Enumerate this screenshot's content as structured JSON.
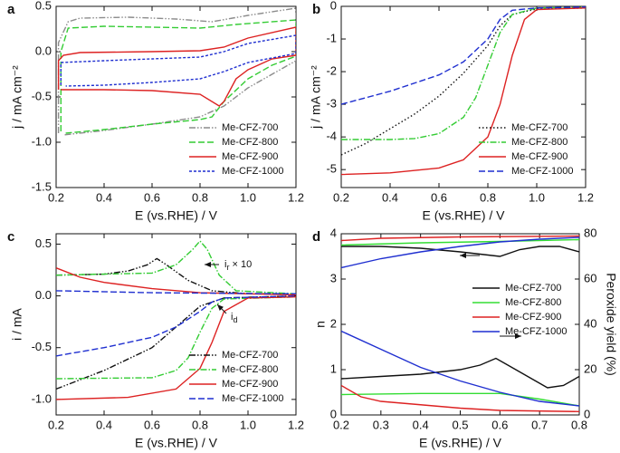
{
  "chart_data": [
    {
      "type": "line",
      "label": "a",
      "x_label": "E (vs.RHE) / V",
      "y_label": "j / mA cm⁻²",
      "xlim": [
        0.2,
        1.2
      ],
      "xticks": [
        0.2,
        0.4,
        0.6,
        0.8,
        {
          "value": 1.0,
          "label": "1.0"
        },
        1.2
      ],
      "ylim": [
        -1.5,
        0.5
      ],
      "yticks": [
        -1.5,
        {
          "value": -1.0,
          "label": "-1.0"
        },
        -0.5,
        {
          "value": 0,
          "label": "0.0"
        },
        0.5
      ],
      "legend": "lower right",
      "series": [
        {
          "name": "Me-CFZ-700",
          "color": "#8c8c8c",
          "linestyle": "dashdotdot",
          "x": [
            0.21,
            0.21,
            0.25,
            0.3,
            0.5,
            0.7,
            0.85,
            1.0,
            1.2,
            1.2,
            1.1,
            1.0,
            0.9,
            0.8,
            0.6,
            0.4,
            0.23
          ],
          "values": [
            -0.9,
            0.1,
            0.33,
            0.37,
            0.38,
            0.36,
            0.33,
            0.4,
            0.48,
            -0.1,
            -0.25,
            -0.4,
            -0.6,
            -0.72,
            -0.8,
            -0.87,
            -0.92
          ]
        },
        {
          "name": "Me-CFZ-800",
          "color": "#33cc33",
          "linestyle": "dashed",
          "x": [
            0.22,
            0.22,
            0.25,
            0.4,
            0.6,
            0.8,
            0.95,
            1.2,
            1.2,
            1.1,
            1.0,
            0.9,
            0.85,
            0.8,
            0.6,
            0.4,
            0.24
          ],
          "values": [
            -0.88,
            0.0,
            0.26,
            0.28,
            0.27,
            0.26,
            0.3,
            0.35,
            -0.05,
            -0.15,
            -0.3,
            -0.55,
            -0.72,
            -0.75,
            -0.8,
            -0.86,
            -0.9
          ]
        },
        {
          "name": "Me-CFZ-900",
          "color": "#dd2222",
          "linestyle": "solid",
          "x": [
            0.21,
            0.21,
            0.23,
            0.3,
            0.6,
            0.8,
            0.9,
            1.0,
            1.2,
            1.2,
            1.1,
            1.0,
            0.95,
            0.9,
            0.88,
            0.8,
            0.6,
            0.4,
            0.22
          ],
          "values": [
            -0.42,
            -0.1,
            -0.04,
            -0.01,
            0.0,
            0.01,
            0.05,
            0.15,
            0.27,
            -0.04,
            -0.08,
            -0.2,
            -0.3,
            -0.55,
            -0.6,
            -0.47,
            -0.43,
            -0.42,
            -0.42
          ]
        },
        {
          "name": "Me-CFZ-1000",
          "color": "#1f2fd0",
          "linestyle": "shortdash",
          "x": [
            0.22,
            0.22,
            0.4,
            0.6,
            0.8,
            0.9,
            1.0,
            1.2,
            1.2,
            1.0,
            0.9,
            0.8,
            0.6,
            0.4,
            0.24
          ],
          "values": [
            -0.37,
            -0.12,
            -0.1,
            -0.08,
            -0.06,
            0.0,
            0.09,
            0.18,
            -0.02,
            -0.12,
            -0.22,
            -0.3,
            -0.34,
            -0.37,
            -0.38
          ]
        }
      ]
    },
    {
      "type": "line",
      "label": "b",
      "x_label": "E (vs.RHE) / V",
      "y_label": "j / mA cm⁻²",
      "xlim": [
        0.2,
        1.2
      ],
      "xticks": [
        0.2,
        0.4,
        0.6,
        0.8,
        {
          "value": 1.0,
          "label": "1.0"
        },
        1.2
      ],
      "ylim": [
        -5.55,
        0
      ],
      "yticks": [
        -5,
        -4,
        -3,
        -2,
        -1,
        0
      ],
      "legend": "lower right",
      "series": [
        {
          "name": "Me-CFZ-700",
          "color": "#111111",
          "linestyle": "dotted",
          "x": [
            0.2,
            0.3,
            0.4,
            0.5,
            0.6,
            0.7,
            0.8,
            0.85,
            0.9,
            1.0,
            1.2
          ],
          "values": [
            -4.55,
            -4.2,
            -3.75,
            -3.3,
            -2.75,
            -2.05,
            -1.2,
            -0.6,
            -0.25,
            -0.08,
            -0.05
          ]
        },
        {
          "name": "Me-CFZ-800",
          "color": "#33cc33",
          "linestyle": "dashdot",
          "x": [
            0.2,
            0.4,
            0.5,
            0.6,
            0.7,
            0.75,
            0.8,
            0.85,
            0.9,
            1.0,
            1.2
          ],
          "values": [
            -4.08,
            -4.08,
            -4.05,
            -3.9,
            -3.4,
            -2.8,
            -1.8,
            -0.8,
            -0.25,
            -0.05,
            -0.03
          ]
        },
        {
          "name": "Me-CFZ-900",
          "color": "#dd2222",
          "linestyle": "solid",
          "x": [
            0.2,
            0.4,
            0.6,
            0.7,
            0.8,
            0.85,
            0.9,
            0.95,
            1.0,
            1.2
          ],
          "values": [
            -5.15,
            -5.1,
            -4.95,
            -4.7,
            -4.0,
            -3.0,
            -1.5,
            -0.4,
            -0.1,
            -0.05
          ]
        },
        {
          "name": "Me-CFZ-1000",
          "color": "#1f2fd0",
          "linestyle": "dashed",
          "x": [
            0.2,
            0.4,
            0.6,
            0.7,
            0.8,
            0.85,
            0.9,
            1.0,
            1.2
          ],
          "values": [
            -3.0,
            -2.6,
            -2.1,
            -1.7,
            -1.0,
            -0.4,
            -0.12,
            -0.05,
            -0.02
          ]
        }
      ]
    },
    {
      "type": "line",
      "label": "c",
      "x_label": "E (vs.RHE) / V",
      "y_label": "i / mA",
      "xlim": [
        0.2,
        1.2
      ],
      "xticks": [
        0.2,
        0.4,
        0.6,
        0.8,
        {
          "value": 1.0,
          "label": "1.0"
        },
        1.2
      ],
      "ylim": [
        -1.15,
        0.6
      ],
      "yticks": [
        {
          "value": -1.0,
          "label": "-1.0"
        },
        -0.5,
        {
          "value": 0,
          "label": "0.0"
        },
        0.5
      ],
      "legend": "lower right",
      "annotations": [
        {
          "text": "i",
          "sub": "r",
          "tail": " × 10"
        },
        {
          "text": "i",
          "sub": "d"
        }
      ],
      "series": [
        {
          "name": "Me-CFZ-700",
          "color": "#111111",
          "linestyle": "dashdotdot",
          "x": [
            0.2,
            0.4,
            0.5,
            0.58,
            0.62,
            0.66,
            0.75,
            0.85,
            1.0,
            1.2,
            null,
            0.2,
            0.4,
            0.6,
            0.7,
            0.8,
            0.9,
            1.2
          ],
          "values": [
            0.2,
            0.21,
            0.24,
            0.3,
            0.36,
            0.3,
            0.15,
            0.05,
            0.02,
            0.02,
            null,
            -0.9,
            -0.72,
            -0.5,
            -0.3,
            -0.1,
            -0.02,
            0.0
          ]
        },
        {
          "name": "Me-CFZ-800",
          "color": "#33cc33",
          "linestyle": "dashdot",
          "x": [
            0.2,
            0.6,
            0.7,
            0.77,
            0.8,
            0.83,
            0.88,
            0.95,
            1.2,
            null,
            0.2,
            0.6,
            0.7,
            0.75,
            0.8,
            0.85,
            0.9,
            1.2
          ],
          "values": [
            0.2,
            0.22,
            0.3,
            0.45,
            0.53,
            0.45,
            0.2,
            0.05,
            0.02,
            null,
            -0.8,
            -0.79,
            -0.72,
            -0.6,
            -0.35,
            -0.12,
            -0.03,
            -0.01
          ]
        },
        {
          "name": "Me-CFZ-900",
          "color": "#dd2222",
          "linestyle": "solid",
          "x": [
            0.2,
            0.3,
            0.4,
            0.6,
            0.8,
            1.0,
            1.2,
            null,
            0.2,
            0.5,
            0.7,
            0.8,
            0.85,
            0.9,
            1.0,
            1.2
          ],
          "values": [
            0.27,
            0.18,
            0.13,
            0.07,
            0.03,
            0.02,
            0.01,
            null,
            -1.0,
            -0.98,
            -0.9,
            -0.7,
            -0.45,
            -0.15,
            -0.02,
            -0.01
          ]
        },
        {
          "name": "Me-CFZ-1000",
          "color": "#1f2fd0",
          "linestyle": "dashed",
          "x": [
            0.2,
            0.6,
            1.2,
            null,
            0.2,
            0.4,
            0.6,
            0.7,
            0.8,
            0.85,
            0.9,
            1.2
          ],
          "values": [
            0.05,
            0.03,
            0.02,
            null,
            -0.58,
            -0.5,
            -0.4,
            -0.3,
            -0.15,
            -0.06,
            -0.02,
            0.0
          ]
        }
      ]
    },
    {
      "type": "line",
      "label": "d",
      "x_label": "E (vs.RHE) / V",
      "y_label": "n",
      "y2_label": "Peroxide yield (%)",
      "xlim": [
        0.2,
        0.8
      ],
      "xticks": [
        0.2,
        0.3,
        0.4,
        0.5,
        0.6,
        0.7,
        0.8
      ],
      "ylim": [
        0,
        4
      ],
      "yticks": [
        0,
        1,
        2,
        3,
        4
      ],
      "y2lim": [
        0,
        80
      ],
      "y2ticks": [
        0,
        20,
        40,
        60,
        80
      ],
      "legend": "center right",
      "series": [
        {
          "name": "Me-CFZ-700",
          "color": "#111111",
          "linestyle": "solid",
          "x": [
            0.2,
            0.3,
            0.4,
            0.5,
            0.55,
            0.6,
            0.65,
            0.7,
            0.75,
            0.8
          ],
          "values": [
            3.72,
            3.72,
            3.68,
            3.6,
            3.55,
            3.5,
            3.65,
            3.72,
            3.72,
            3.6
          ]
        },
        {
          "name": "Me-CFZ-800",
          "color": "#33dd33",
          "linestyle": "solid",
          "x": [
            0.2,
            0.4,
            0.6,
            0.8
          ],
          "values": [
            3.75,
            3.8,
            3.83,
            3.87
          ]
        },
        {
          "name": "Me-CFZ-900",
          "color": "#dd2222",
          "linestyle": "solid",
          "x": [
            0.2,
            0.3,
            0.5,
            0.8
          ],
          "values": [
            3.85,
            3.9,
            3.93,
            3.95
          ]
        },
        {
          "name": "Me-CFZ-1000",
          "color": "#1f2fd0",
          "linestyle": "solid",
          "x": [
            0.2,
            0.3,
            0.4,
            0.5,
            0.6,
            0.7,
            0.8
          ],
          "values": [
            3.25,
            3.45,
            3.6,
            3.72,
            3.82,
            3.88,
            3.92
          ]
        },
        {
          "color": "#111111",
          "linestyle": "solid",
          "axis": "y2",
          "x": [
            0.2,
            0.3,
            0.4,
            0.5,
            0.55,
            0.59,
            0.62,
            0.67,
            0.72,
            0.76,
            0.8
          ],
          "values": [
            16,
            17,
            18,
            20,
            22,
            25,
            22,
            17,
            12,
            13,
            17
          ]
        },
        {
          "color": "#33dd33",
          "linestyle": "solid",
          "axis": "y2",
          "x": [
            0.2,
            0.4,
            0.6,
            0.7,
            0.8
          ],
          "values": [
            9,
            9.5,
            9.5,
            7,
            4
          ]
        },
        {
          "color": "#dd2222",
          "linestyle": "solid",
          "axis": "y2",
          "x": [
            0.2,
            0.25,
            0.3,
            0.5,
            0.6,
            0.8
          ],
          "values": [
            13,
            8,
            6,
            3,
            2,
            1.5
          ]
        },
        {
          "color": "#1f2fd0",
          "linestyle": "solid",
          "axis": "y2",
          "x": [
            0.2,
            0.3,
            0.4,
            0.5,
            0.6,
            0.7,
            0.8
          ],
          "values": [
            37,
            29,
            21,
            15,
            10,
            6,
            4
          ]
        }
      ]
    }
  ]
}
